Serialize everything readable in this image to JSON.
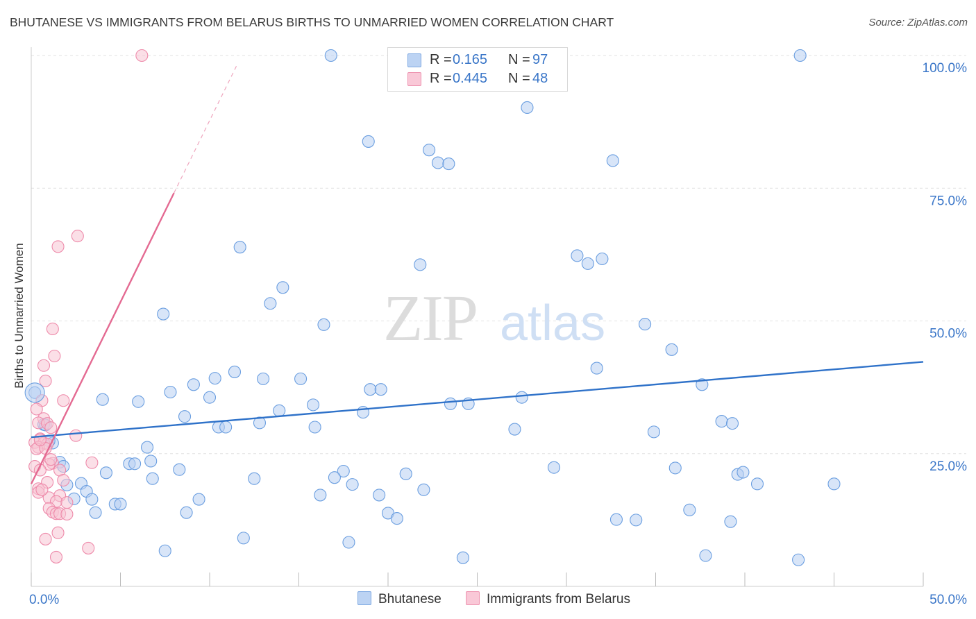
{
  "header": {
    "title": "BHUTANESE VS IMMIGRANTS FROM BELARUS BIRTHS TO UNMARRIED WOMEN CORRELATION CHART",
    "source": "Source: ZipAtlas.com"
  },
  "watermark": {
    "zip": "ZIP",
    "atlas": "atlas"
  },
  "legend": {
    "rows": [
      {
        "r_label": "R = ",
        "r_value": "0.165",
        "n_label": "N = ",
        "n_value": "97",
        "color": "#a9c6ef"
      },
      {
        "r_label": "R = ",
        "r_value": "0.445",
        "n_label": "N = ",
        "n_value": "48",
        "color": "#f5b5c8"
      }
    ]
  },
  "chart_data": {
    "type": "scatter",
    "title": "BHUTANESE VS IMMIGRANTS FROM BELARUS BIRTHS TO UNMARRIED WOMEN CORRELATION CHART",
    "xlabel": "",
    "ylabel": "Births to Unmarried Women",
    "xlim": [
      0,
      50
    ],
    "ylim": [
      0,
      100
    ],
    "x_tick_labels": [
      "0.0%",
      "50.0%"
    ],
    "y_tick_labels": [
      "100.0%",
      "75.0%",
      "50.0%",
      "25.0%"
    ],
    "y_ticks": [
      100,
      75,
      50,
      25
    ],
    "grid": true,
    "legend_position": "bottom",
    "series": [
      {
        "name": "Bhutanese",
        "color": "#6a9ee0",
        "fill": "#b8d0f2",
        "trend": {
          "x": [
            0,
            50
          ],
          "y": [
            28.1,
            42.3
          ],
          "color": "#2f72c9"
        },
        "points": [
          [
            16.8,
            100
          ],
          [
            43.1,
            100
          ],
          [
            27.8,
            90.2
          ],
          [
            18.9,
            83.8
          ],
          [
            22.3,
            82.2
          ],
          [
            22.8,
            79.8
          ],
          [
            23.4,
            79.6
          ],
          [
            32.6,
            80.2
          ],
          [
            11.7,
            63.9
          ],
          [
            30.6,
            62.3
          ],
          [
            31.2,
            60.8
          ],
          [
            32.0,
            61.7
          ],
          [
            21.8,
            60.6
          ],
          [
            14.1,
            56.3
          ],
          [
            13.4,
            53.3
          ],
          [
            7.4,
            51.3
          ],
          [
            16.4,
            49.3
          ],
          [
            34.4,
            49.4
          ],
          [
            35.9,
            44.6
          ],
          [
            31.7,
            41.1
          ],
          [
            11.4,
            40.4
          ],
          [
            10.3,
            39.2
          ],
          [
            13.0,
            39.1
          ],
          [
            15.1,
            39.1
          ],
          [
            9.1,
            38.0
          ],
          [
            37.6,
            38.0
          ],
          [
            19.0,
            37.1
          ],
          [
            19.6,
            37.1
          ],
          [
            7.8,
            36.6
          ],
          [
            10.0,
            35.6
          ],
          [
            27.5,
            35.6
          ],
          [
            4.0,
            35.2
          ],
          [
            6.0,
            34.8
          ],
          [
            23.5,
            34.4
          ],
          [
            24.5,
            34.4
          ],
          [
            15.8,
            34.2
          ],
          [
            13.9,
            33.1
          ],
          [
            18.6,
            32.8
          ],
          [
            8.6,
            32.0
          ],
          [
            12.8,
            30.8
          ],
          [
            10.5,
            30.0
          ],
          [
            10.9,
            30.0
          ],
          [
            15.9,
            30.0
          ],
          [
            38.7,
            31.1
          ],
          [
            39.3,
            30.7
          ],
          [
            27.1,
            29.6
          ],
          [
            34.9,
            29.1
          ],
          [
            0.7,
            30.5
          ],
          [
            1.2,
            27.0
          ],
          [
            6.5,
            26.2
          ],
          [
            6.7,
            23.6
          ],
          [
            5.5,
            23.1
          ],
          [
            5.8,
            23.1
          ],
          [
            1.6,
            23.4
          ],
          [
            1.8,
            22.6
          ],
          [
            8.3,
            22.0
          ],
          [
            29.3,
            22.4
          ],
          [
            36.1,
            22.3
          ],
          [
            4.2,
            21.4
          ],
          [
            17.5,
            21.7
          ],
          [
            21.0,
            21.2
          ],
          [
            39.6,
            21.1
          ],
          [
            39.9,
            21.5
          ],
          [
            6.8,
            20.3
          ],
          [
            12.5,
            20.3
          ],
          [
            17.0,
            20.5
          ],
          [
            18.0,
            19.2
          ],
          [
            40.7,
            19.3
          ],
          [
            45.0,
            19.3
          ],
          [
            2.0,
            19.1
          ],
          [
            2.8,
            19.4
          ],
          [
            22.0,
            18.2
          ],
          [
            3.1,
            17.9
          ],
          [
            16.2,
            17.2
          ],
          [
            19.5,
            17.2
          ],
          [
            2.4,
            16.5
          ],
          [
            3.4,
            16.4
          ],
          [
            9.4,
            16.4
          ],
          [
            4.7,
            15.5
          ],
          [
            5.0,
            15.5
          ],
          [
            36.9,
            14.4
          ],
          [
            3.6,
            13.9
          ],
          [
            8.7,
            13.9
          ],
          [
            20.0,
            13.8
          ],
          [
            20.5,
            12.8
          ],
          [
            32.8,
            12.6
          ],
          [
            33.9,
            12.5
          ],
          [
            39.2,
            12.2
          ],
          [
            11.9,
            9.1
          ],
          [
            17.8,
            8.3
          ],
          [
            7.5,
            6.7
          ],
          [
            24.2,
            5.4
          ],
          [
            37.8,
            5.8
          ],
          [
            43.0,
            5.0
          ],
          [
            0.2,
            36.5
          ],
          [
            1.0,
            27.4
          ],
          [
            0.8,
            30.4
          ]
        ]
      },
      {
        "name": "Immigrants from Belarus",
        "color": "#ee8aaa",
        "fill": "#f8c4d4",
        "trend": {
          "x": [
            0,
            8
          ],
          "y": [
            19.3,
            74.1
          ],
          "color": "#e46a92"
        },
        "trend_extension": {
          "x": [
            8,
            11.5
          ],
          "y": [
            74.1,
            98.0
          ]
        },
        "points": [
          [
            6.2,
            100
          ],
          [
            2.6,
            66.0
          ],
          [
            1.5,
            64.0
          ],
          [
            1.2,
            48.5
          ],
          [
            1.3,
            43.4
          ],
          [
            0.7,
            41.6
          ],
          [
            0.8,
            38.7
          ],
          [
            0.6,
            35.0
          ],
          [
            1.8,
            35.0
          ],
          [
            0.3,
            33.4
          ],
          [
            0.7,
            31.6
          ],
          [
            0.4,
            30.8
          ],
          [
            0.9,
            30.7
          ],
          [
            1.1,
            29.9
          ],
          [
            2.5,
            28.4
          ],
          [
            0.5,
            27.8
          ],
          [
            0.2,
            27.1
          ],
          [
            0.7,
            27.0
          ],
          [
            0.9,
            26.8
          ],
          [
            0.4,
            26.2
          ],
          [
            0.3,
            25.9
          ],
          [
            0.8,
            26.0
          ],
          [
            3.4,
            23.3
          ],
          [
            1.2,
            23.2
          ],
          [
            1.0,
            23.0
          ],
          [
            0.2,
            22.6
          ],
          [
            1.6,
            21.9
          ],
          [
            0.5,
            21.9
          ],
          [
            1.8,
            20.0
          ],
          [
            0.9,
            19.6
          ],
          [
            0.4,
            18.4
          ],
          [
            0.4,
            17.7
          ],
          [
            1.6,
            17.1
          ],
          [
            1.0,
            16.7
          ],
          [
            1.4,
            16.0
          ],
          [
            2.0,
            15.8
          ],
          [
            1.0,
            14.7
          ],
          [
            1.2,
            14.0
          ],
          [
            1.4,
            13.7
          ],
          [
            1.6,
            13.7
          ],
          [
            2.0,
            13.6
          ],
          [
            1.5,
            10.1
          ],
          [
            0.8,
            8.9
          ],
          [
            3.2,
            7.2
          ],
          [
            1.4,
            5.5
          ],
          [
            0.5,
            27.6
          ],
          [
            1.1,
            23.9
          ],
          [
            0.6,
            18.2
          ]
        ]
      }
    ]
  }
}
